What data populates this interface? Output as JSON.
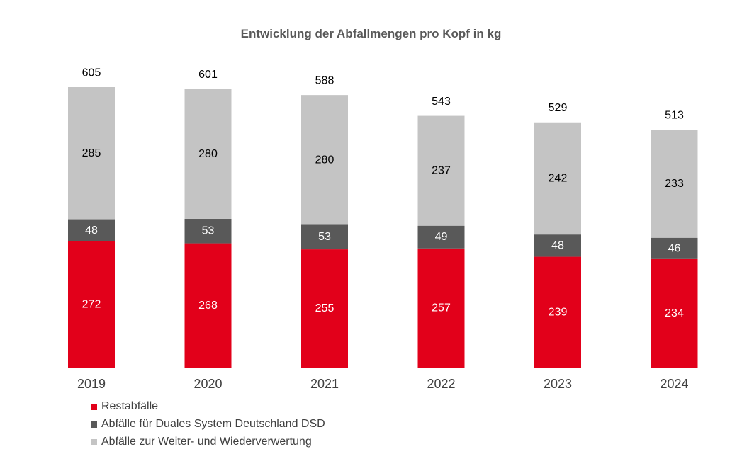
{
  "chart_data": {
    "type": "bar",
    "stacked": true,
    "title": "Entwicklung der Abfallmengen pro Kopf in kg",
    "categories": [
      "2019",
      "2020",
      "2021",
      "2022",
      "2023",
      "2024"
    ],
    "series": [
      {
        "name": "Restabfälle",
        "values": [
          272,
          268,
          255,
          257,
          239,
          234
        ],
        "color": "#e2001a",
        "label_color": "#ffffff"
      },
      {
        "name": "Abfälle für Duales System Deutschland DSD",
        "values": [
          48,
          53,
          53,
          49,
          48,
          46
        ],
        "color": "#595959",
        "label_color": "#ffffff"
      },
      {
        "name": "Abfälle zur Weiter- und Wiederverwertung",
        "values": [
          285,
          280,
          280,
          237,
          242,
          233
        ],
        "color": "#c4c4c4",
        "label_color": "#000000"
      }
    ],
    "totals": [
      "605",
      "601",
      "588",
      "543",
      "529",
      "513"
    ],
    "ylim": [
      0,
      680
    ],
    "legend_position": "bottom-left",
    "grid": false
  }
}
